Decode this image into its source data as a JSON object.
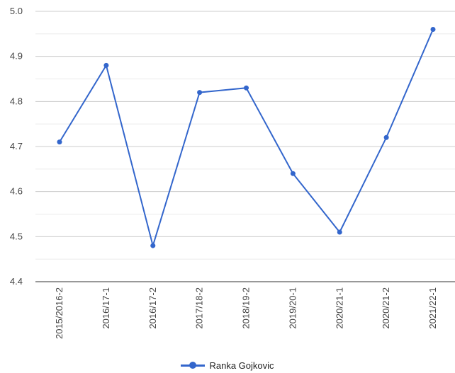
{
  "chart_data": {
    "type": "line",
    "categories": [
      "2015/2016-2",
      "2016/17-1",
      "2016/17-2",
      "2017/18-2",
      "2018/19-2",
      "2019/20-1",
      "2020/21-1",
      "2020/21-2",
      "2021/22-1"
    ],
    "series": [
      {
        "name": "Ranka Gojkovic",
        "values": [
          4.71,
          4.88,
          4.48,
          4.82,
          4.83,
          4.64,
          4.51,
          4.72,
          4.96
        ],
        "color": "#3366cc"
      }
    ],
    "yticks": [
      "4.4",
      "4.5",
      "4.6",
      "4.7",
      "4.8",
      "4.9",
      "5.0"
    ],
    "ylim": [
      4.4,
      5.0
    ],
    "grid": true,
    "legend_position": "bottom",
    "title": "",
    "xlabel": "",
    "ylabel": ""
  }
}
